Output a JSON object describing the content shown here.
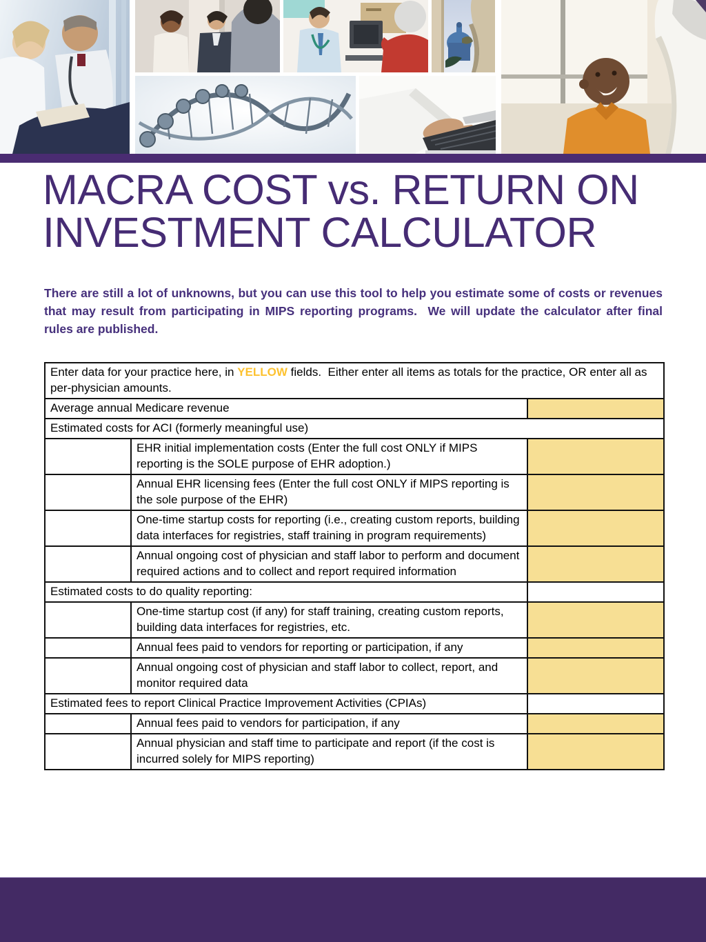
{
  "page": {
    "title_line1": "MACRA COST vs. RETURN ON",
    "title_line2": "INVESTMENT CALCULATOR",
    "intro": "There are still a lot of unknowns, but you can use this tool to help you estimate some of costs or revenues that may result from participating in MIPS reporting programs.  We will update the calculator after final rules are published."
  },
  "colors": {
    "title_purple": "#462c74",
    "body_purple": "#46307c",
    "stripe_purple": "#4a2c72",
    "footer_purple": "#432a64",
    "field_yellow": "#f7df94",
    "highlight_yellow": "#fdc230",
    "border_black": "#111111"
  },
  "header_collage": {
    "photos": [
      {
        "id": "ph-doctors",
        "name": "photo-doctors-consulting",
        "desc": "Two clinicians in white coats reviewing a chart"
      },
      {
        "id": "ph-meeting",
        "name": "photo-business-meeting",
        "desc": "Three professionals talking in an office"
      },
      {
        "id": "ph-doctor-senior",
        "name": "photo-doctor-senior-patient",
        "desc": "Doctor speaking with senior woman at a computer desk"
      },
      {
        "id": "ph-capitol",
        "name": "photo-capitol-building",
        "desc": "US Capitol dome seen between stone columns"
      },
      {
        "id": "ph-dna",
        "name": "photo-dna-strand",
        "desc": "Gray DNA double helix model"
      },
      {
        "id": "ph-typing",
        "name": "photo-typing-hands",
        "desc": "Hands in a white coat typing on a laptop"
      },
      {
        "id": "ph-boy",
        "name": "photo-child-with-clinician",
        "desc": "Smiling boy in orange shirt looking up at white-haired clinician"
      }
    ]
  },
  "table": {
    "instructions": {
      "pre": "Enter data for your practice here, in ",
      "highlight": "YELLOW",
      "post": " fields.  Either enter all items as totals for the practice, OR enter all as per-physician amounts."
    },
    "rows": [
      {
        "id": "medicare_revenue",
        "kind": "label-input",
        "label": "Average annual Medicare revenue",
        "field": "yellow",
        "value": ""
      },
      {
        "id": "aci_section",
        "kind": "section-full",
        "label": "Estimated costs for ACI (formerly meaningful use)"
      },
      {
        "id": "ehr_initial_implementation",
        "kind": "item",
        "label": "EHR initial implementation costs (Enter the full cost ONLY if MIPS reporting is the SOLE purpose of EHR adoption.)",
        "field": "yellow",
        "value": ""
      },
      {
        "id": "ehr_licensing",
        "kind": "item",
        "label": "Annual EHR licensing fees (Enter the full cost ONLY if MIPS reporting is the sole purpose of the EHR)",
        "field": "yellow",
        "value": ""
      },
      {
        "id": "aci_onetime_startup",
        "kind": "item",
        "label": "One-time startup costs for reporting (i.e., creating custom reports, building data interfaces for registries, staff training in program requirements)",
        "field": "yellow",
        "value": ""
      },
      {
        "id": "aci_ongoing_labor",
        "kind": "item",
        "label": "Annual ongoing cost of physician and staff labor to perform and document required actions and to collect and report required information",
        "field": "yellow",
        "value": ""
      },
      {
        "id": "quality_section",
        "kind": "section-input",
        "label": "Estimated costs to do quality reporting:",
        "field": "white",
        "value": ""
      },
      {
        "id": "quality_onetime_startup",
        "kind": "item",
        "label": "One-time startup cost (if any) for staff training, creating custom reports, building data interfaces for registries, etc.",
        "field": "yellow",
        "value": ""
      },
      {
        "id": "quality_vendor_fees",
        "kind": "item",
        "label": "Annual fees paid to vendors for reporting or participation, if any",
        "field": "yellow",
        "value": ""
      },
      {
        "id": "quality_ongoing_labor",
        "kind": "item",
        "label": "Annual ongoing cost of physician and staff labor to collect, report, and monitor required data",
        "field": "yellow",
        "value": ""
      },
      {
        "id": "cpia_section",
        "kind": "section-input",
        "label": "Estimated fees to report Clinical Practice Improvement Activities (CPIAs)",
        "field": "white",
        "value": ""
      },
      {
        "id": "cpia_vendor_fees",
        "kind": "item",
        "label": "Annual fees paid to vendors for participation, if any",
        "field": "yellow",
        "value": ""
      },
      {
        "id": "cpia_staff_time",
        "kind": "item",
        "label": "Annual physician and staff time to participate and report (if the cost is incurred solely for MIPS reporting)",
        "field": "yellow",
        "value": ""
      }
    ]
  }
}
